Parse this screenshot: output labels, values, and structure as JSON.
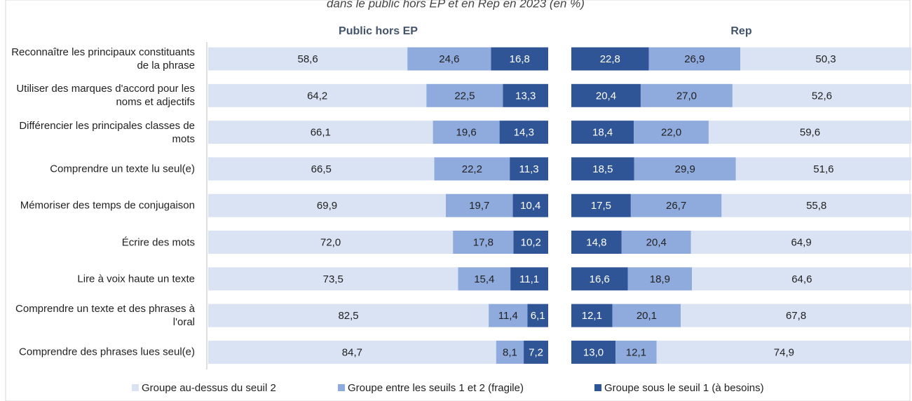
{
  "chart_data": {
    "type": "bar",
    "orientation": "horizontal",
    "stacked": true,
    "title": "dans le public hors EP et en Rep en 2023 (en %)",
    "categories": [
      "Reconnaître les principaux constituants de la phrase",
      "Utiliser des marques d'accord pour les noms et adjectifs",
      "Différencier les principales classes de mots",
      "Comprendre un texte lu seul(e)",
      "Mémoriser des temps de conjugaison",
      "Écrire des mots",
      "Lire à voix haute un texte",
      "Comprendre un texte et des phrases à l'oral",
      "Comprendre des phrases lues seul(e)"
    ],
    "xlim": [
      0,
      100
    ],
    "legend": "bottom",
    "series": [
      {
        "name": "Groupe au-dessus du seuil 2",
        "color": "#dae3f3"
      },
      {
        "name": "Groupe entre les seuils 1 et 2 (fragile)",
        "color": "#8faadc"
      },
      {
        "name": "Groupe sous le seuil 1 (à besoins)",
        "color": "#2f5597"
      }
    ],
    "panels": [
      {
        "title": "Public hors EP",
        "reverse": false,
        "values": [
          [
            58.6,
            64.2,
            66.1,
            66.5,
            69.9,
            72.0,
            73.5,
            82.5,
            84.7
          ],
          [
            24.6,
            22.5,
            19.6,
            22.2,
            19.7,
            17.8,
            15.4,
            11.4,
            8.1
          ],
          [
            16.8,
            13.3,
            14.3,
            11.3,
            10.4,
            10.2,
            11.1,
            6.1,
            7.2
          ]
        ],
        "value_labels": [
          [
            "58,6",
            "64,2",
            "66,1",
            "66,5",
            "69,9",
            "72,0",
            "73,5",
            "82,5",
            "84,7"
          ],
          [
            "24,6",
            "22,5",
            "19,6",
            "22,2",
            "19,7",
            "17,8",
            "15,4",
            "11,4",
            "8,1"
          ],
          [
            "16,8",
            "13,3",
            "14,3",
            "11,3",
            "10,4",
            "10,2",
            "11,1",
            "6,1",
            "7,2"
          ]
        ]
      },
      {
        "title": "Rep",
        "reverse": true,
        "values": [
          [
            50.3,
            52.6,
            59.6,
            51.6,
            55.8,
            64.9,
            64.6,
            67.8,
            74.9
          ],
          [
            26.9,
            27.0,
            22.0,
            29.9,
            26.7,
            20.4,
            18.9,
            20.1,
            12.1
          ],
          [
            22.8,
            20.4,
            18.4,
            18.5,
            17.5,
            14.8,
            16.6,
            12.1,
            13.0
          ]
        ],
        "value_labels": [
          [
            "50,3",
            "52,6",
            "59,6",
            "51,6",
            "55,8",
            "64,9",
            "64,6",
            "67,8",
            "74,9"
          ],
          [
            "26,9",
            "27,0",
            "22,0",
            "29,9",
            "26,7",
            "20,4",
            "18,9",
            "20,1",
            "12,1"
          ],
          [
            "22,8",
            "20,4",
            "18,4",
            "18,5",
            "17,5",
            "14,8",
            "16,6",
            "12,1",
            "13,0"
          ]
        ]
      }
    ]
  }
}
